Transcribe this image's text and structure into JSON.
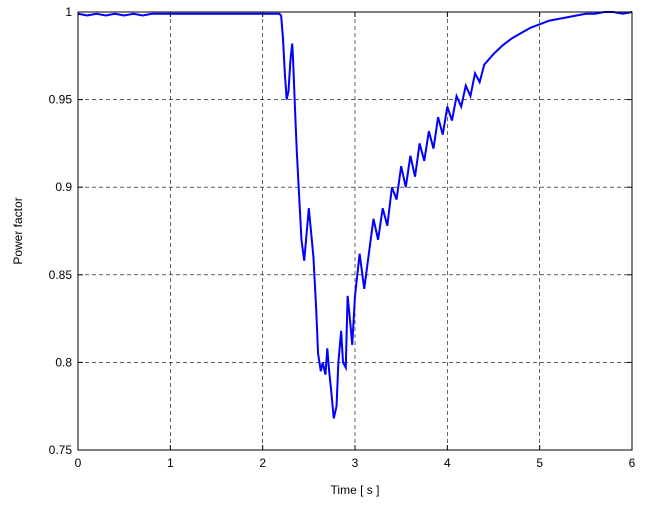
{
  "chart_data": {
    "type": "line",
    "xlabel": "Time [ s ]",
    "ylabel": "Power factor",
    "xlim": [
      0,
      6
    ],
    "ylim": [
      0.75,
      1
    ],
    "xticks": [
      0,
      1,
      2,
      3,
      4,
      5,
      6
    ],
    "xtick_labels": [
      "0",
      "1",
      "2",
      "3",
      "4",
      "5",
      "6"
    ],
    "yticks": [
      0.75,
      0.8,
      0.85,
      0.9,
      0.95,
      1
    ],
    "ytick_labels": [
      "0.75",
      "0.8",
      "0.85",
      "0.9",
      "0.95",
      "1"
    ],
    "grid": true,
    "grid_style": "dashed",
    "line_color": "#0000ff",
    "series": [
      {
        "x": [
          0,
          0.1,
          0.2,
          0.3,
          0.4,
          0.5,
          0.6,
          0.7,
          0.8,
          0.9,
          1.0,
          1.2,
          1.4,
          1.6,
          1.8,
          2.0,
          2.1,
          2.15,
          2.18,
          2.2,
          2.22,
          2.24,
          2.26,
          2.28,
          2.3,
          2.32,
          2.33,
          2.35,
          2.37,
          2.4,
          2.42,
          2.45,
          2.5,
          2.55,
          2.58,
          2.6,
          2.63,
          2.65,
          2.68,
          2.7,
          2.72,
          2.74,
          2.77,
          2.8,
          2.82,
          2.85,
          2.87,
          2.9,
          2.92,
          2.95,
          2.97,
          3.0,
          3.05,
          3.1,
          3.15,
          3.2,
          3.25,
          3.3,
          3.35,
          3.4,
          3.45,
          3.5,
          3.55,
          3.6,
          3.65,
          3.7,
          3.75,
          3.8,
          3.85,
          3.9,
          3.95,
          4.0,
          4.05,
          4.1,
          4.15,
          4.2,
          4.25,
          4.3,
          4.35,
          4.4,
          4.5,
          4.6,
          4.7,
          4.8,
          4.9,
          5.0,
          5.1,
          5.2,
          5.3,
          5.4,
          5.5,
          5.6,
          5.7,
          5.8,
          5.9,
          6.0
        ],
        "values": [
          0.999,
          0.998,
          0.999,
          0.998,
          0.999,
          0.998,
          0.999,
          0.998,
          0.999,
          0.999,
          0.999,
          0.999,
          0.999,
          0.999,
          0.999,
          0.999,
          0.999,
          0.999,
          0.999,
          0.998,
          0.985,
          0.965,
          0.95,
          0.955,
          0.972,
          0.982,
          0.972,
          0.945,
          0.92,
          0.89,
          0.87,
          0.858,
          0.888,
          0.86,
          0.83,
          0.805,
          0.795,
          0.8,
          0.793,
          0.808,
          0.795,
          0.785,
          0.768,
          0.775,
          0.8,
          0.818,
          0.8,
          0.797,
          0.838,
          0.822,
          0.81,
          0.838,
          0.862,
          0.842,
          0.862,
          0.882,
          0.87,
          0.888,
          0.878,
          0.9,
          0.893,
          0.912,
          0.9,
          0.918,
          0.906,
          0.925,
          0.915,
          0.932,
          0.922,
          0.94,
          0.93,
          0.946,
          0.938,
          0.952,
          0.946,
          0.958,
          0.952,
          0.965,
          0.96,
          0.97,
          0.976,
          0.981,
          0.985,
          0.988,
          0.991,
          0.993,
          0.995,
          0.996,
          0.997,
          0.998,
          0.999,
          0.999,
          1.0,
          1.0,
          0.999,
          1.0
        ]
      }
    ]
  }
}
